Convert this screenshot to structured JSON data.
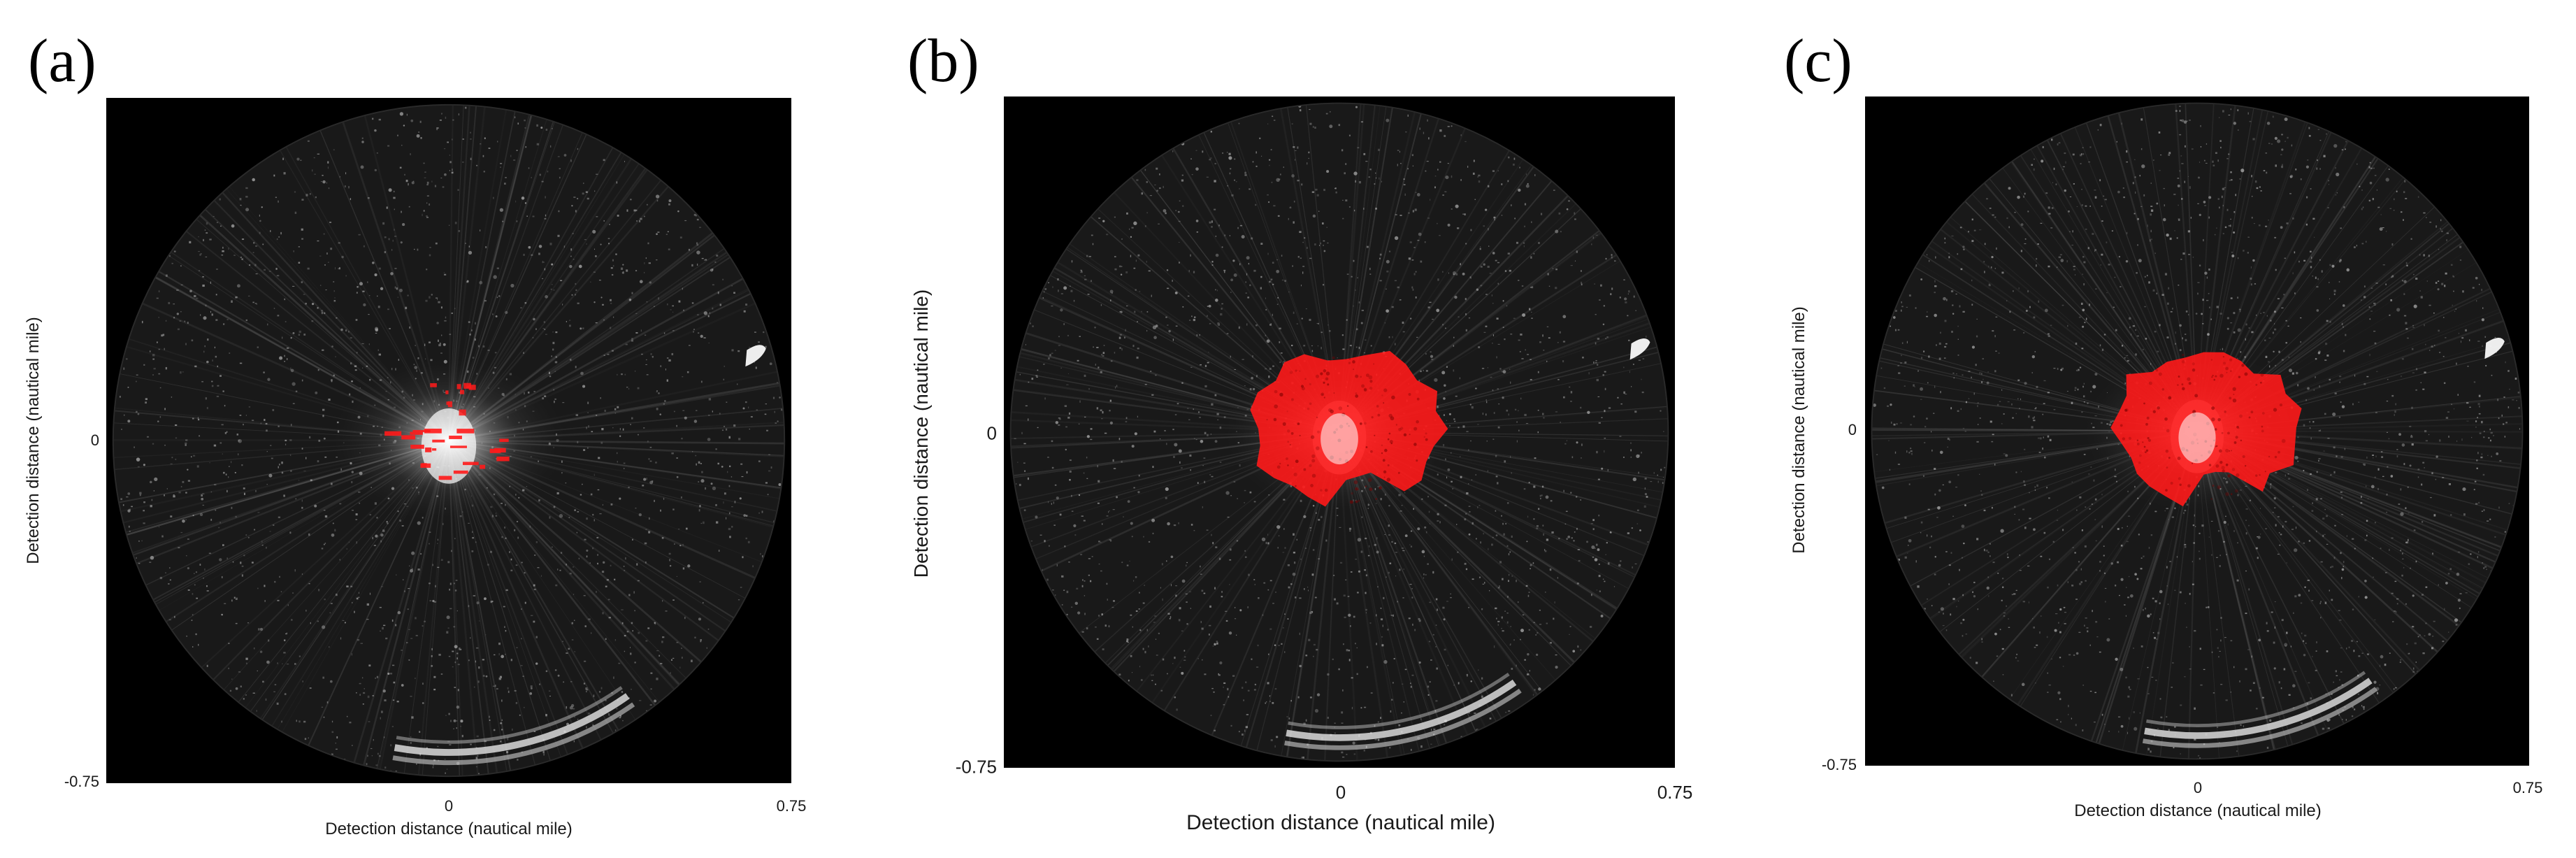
{
  "figure": {
    "panels": [
      {
        "letter_open": "(",
        "letter": "a",
        "letter_close": ")",
        "xlabel": "Detection distance (nautical mile)",
        "ylabel": "Detection distance (nautical mile)",
        "ticks": {
          "y_zero": "0",
          "y_min": "-0.75",
          "x_zero": "0",
          "x_max": "0.75"
        },
        "overlay": "sparse-red-detections"
      },
      {
        "letter_open": "(",
        "letter": "b",
        "letter_close": ")",
        "xlabel": "Detection distance (nautical mile)",
        "ylabel": "Detection distance (nautical mile)",
        "ticks": {
          "y_zero": "0",
          "y_min": "-0.75",
          "x_zero": "0",
          "x_max": "0.75"
        },
        "overlay": "dense-red-region"
      },
      {
        "letter_open": "(",
        "letter": "c",
        "letter_close": ")",
        "xlabel": "Detection distance (nautical mile)",
        "ylabel": "Detection distance (nautical mile)",
        "ticks": {
          "y_zero": "0",
          "y_min": "-0.75",
          "x_zero": "0",
          "x_max": "0.75"
        },
        "overlay": "dense-red-region"
      }
    ],
    "colors": {
      "radar_background": "#000000",
      "radar_noise": "#5a5a5a",
      "detection_overlay": "#ff1a1a"
    }
  }
}
